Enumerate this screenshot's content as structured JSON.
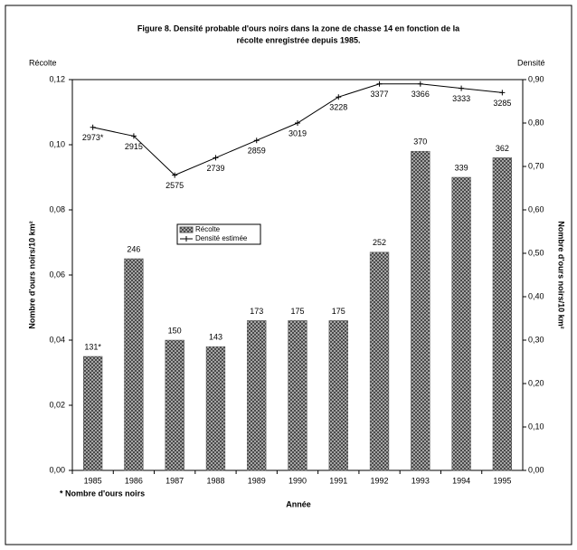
{
  "chart_data": {
    "type": "bar-line",
    "title": [
      "Figure 8. Densité probable d'ours noirs dans la zone de chasse 14 en fonction de la",
      "récolte enregistrée depuis 1985."
    ],
    "y_label_top": "Récolte",
    "y2_label_top": "Densité",
    "y_label": "Nombre d'ours noirs/10 km²",
    "y2_label": "Nombre d'ours noirs/10 km²",
    "x_label": "Année",
    "footnote": "* Nombre d'ours noirs",
    "categories": [
      "1985",
      "1986",
      "1987",
      "1988",
      "1989",
      "1990",
      "1991",
      "1992",
      "1993",
      "1994",
      "1995"
    ],
    "series": [
      {
        "name": "Récolte",
        "type": "bar",
        "color": "#555555",
        "values": [
          0.035,
          0.065,
          0.04,
          0.038,
          0.046,
          0.046,
          0.046,
          0.067,
          0.098,
          0.09,
          0.096
        ],
        "point_labels": [
          "131*",
          "246",
          "150",
          "143",
          "173",
          "175",
          "175",
          "252",
          "370",
          "339",
          "362"
        ]
      },
      {
        "name": "Densité estimée",
        "type": "line",
        "axis": "y2",
        "color": "#000000",
        "values": [
          0.79,
          0.77,
          0.68,
          0.72,
          0.76,
          0.8,
          0.86,
          0.89,
          0.89,
          0.88,
          0.87
        ],
        "point_labels": [
          "2973*",
          "2915",
          "2575",
          "2739",
          "2859",
          "3019",
          "3228",
          "3377",
          "3366",
          "3333",
          "3285"
        ]
      }
    ],
    "ylim": [
      0,
      0.12
    ],
    "yticks": [
      {
        "value": 0,
        "label": "0,00"
      },
      {
        "value": 0.02,
        "label": "0,02"
      },
      {
        "value": 0.04,
        "label": "0,04"
      },
      {
        "value": 0.06,
        "label": "0,06"
      },
      {
        "value": 0.08,
        "label": "0,08"
      },
      {
        "value": 0.1,
        "label": "0,10"
      },
      {
        "value": 0.12,
        "label": "0,12"
      }
    ],
    "y2lim": [
      0,
      0.9
    ],
    "y2ticks": [
      {
        "value": 0,
        "label": "0,00"
      },
      {
        "value": 0.1,
        "label": "0,10"
      },
      {
        "value": 0.2,
        "label": "0,20"
      },
      {
        "value": 0.3,
        "label": "0,30"
      },
      {
        "value": 0.4,
        "label": "0,40"
      },
      {
        "value": 0.5,
        "label": "0,50"
      },
      {
        "value": 0.6,
        "label": "0,60"
      },
      {
        "value": 0.7,
        "label": "0,70"
      },
      {
        "value": 0.8,
        "label": "0,80"
      },
      {
        "value": 0.9,
        "label": "0,90"
      }
    ]
  }
}
